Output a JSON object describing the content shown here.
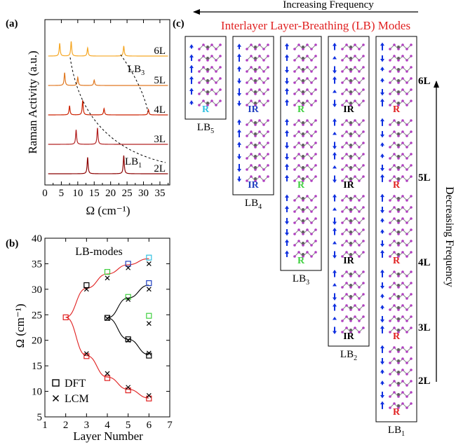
{
  "panel_labels": {
    "a": "(a)",
    "b": "(b)",
    "c": "(c)"
  },
  "chart_data": [
    {
      "type": "line",
      "panel": "(a)",
      "xlabel": "Ω (cm⁻¹)",
      "ylabel": "Raman Activity (a.u.)",
      "xlim": [
        0,
        38
      ],
      "xticks": [
        0,
        5,
        10,
        15,
        20,
        25,
        30,
        35
      ],
      "series": [
        {
          "name": "2L",
          "color": "#8b0000",
          "peaks": [
            [
              13,
              0.9
            ],
            [
              24,
              1.0
            ]
          ]
        },
        {
          "name": "3L",
          "color": "#b22222",
          "peaks": [
            [
              9.5,
              0.8
            ],
            [
              16,
              0.9
            ]
          ]
        },
        {
          "name": "4L",
          "color": "#cc2200",
          "peaks": [
            [
              7.5,
              0.5
            ],
            [
              11.5,
              0.8
            ],
            [
              18,
              0.35
            ],
            [
              31.5,
              0.3
            ]
          ]
        },
        {
          "name": "5L",
          "color": "#e07820",
          "peaks": [
            [
              6,
              0.7
            ],
            [
              10,
              0.45
            ],
            [
              15,
              0.3
            ]
          ]
        },
        {
          "name": "6L",
          "color": "#f5a623",
          "peaks": [
            [
              4.5,
              0.7
            ],
            [
              8,
              0.8
            ],
            [
              13,
              0.45
            ],
            [
              24,
              0.55
            ]
          ]
        }
      ],
      "annotations": [
        "LB₁",
        "LB₃"
      ],
      "grid": false
    },
    {
      "type": "scatter",
      "panel": "(b)",
      "title": "LB-modes",
      "xlabel": "Layer Number",
      "ylabel": "Ω (cm⁻¹)",
      "xlim": [
        1,
        7
      ],
      "ylim": [
        5,
        40
      ],
      "xticks": [
        1,
        2,
        3,
        4,
        5,
        6,
        7
      ],
      "yticks": [
        5,
        10,
        15,
        20,
        25,
        30,
        35,
        40
      ],
      "legend": [
        {
          "marker": "square",
          "label": "DFT"
        },
        {
          "marker": "x",
          "label": "LCM"
        }
      ],
      "legend_position": "bottom-left",
      "dft": [
        {
          "x": 2,
          "y": 24.5,
          "color": "#e02020"
        },
        {
          "x": 3,
          "y": 30.8,
          "color": "#000000"
        },
        {
          "x": 3,
          "y": 16.9,
          "color": "#e02020"
        },
        {
          "x": 4,
          "y": 33.4,
          "color": "#40d040"
        },
        {
          "x": 4,
          "y": 24.4,
          "color": "#000000"
        },
        {
          "x": 4,
          "y": 12.6,
          "color": "#e02020"
        },
        {
          "x": 5,
          "y": 35.0,
          "color": "#2040c0"
        },
        {
          "x": 5,
          "y": 28.5,
          "color": "#40d040"
        },
        {
          "x": 5,
          "y": 20.2,
          "color": "#000000"
        },
        {
          "x": 5,
          "y": 10.2,
          "color": "#e02020"
        },
        {
          "x": 6,
          "y": 36.2,
          "color": "#30c0e0"
        },
        {
          "x": 6,
          "y": 31.2,
          "color": "#2040c0"
        },
        {
          "x": 6,
          "y": 24.8,
          "color": "#40d040"
        },
        {
          "x": 6,
          "y": 17.0,
          "color": "#000000"
        },
        {
          "x": 6,
          "y": 8.6,
          "color": "#e02020"
        }
      ],
      "lcm": [
        {
          "x": 3,
          "y": 30.0
        },
        {
          "x": 3,
          "y": 17.4
        },
        {
          "x": 4,
          "y": 32.2
        },
        {
          "x": 4,
          "y": 24.3
        },
        {
          "x": 4,
          "y": 13.5
        },
        {
          "x": 5,
          "y": 34.2
        },
        {
          "x": 5,
          "y": 28.0
        },
        {
          "x": 5,
          "y": 20.0
        },
        {
          "x": 5,
          "y": 10.8
        },
        {
          "x": 6,
          "y": 35.0
        },
        {
          "x": 6,
          "y": 30.0
        },
        {
          "x": 6,
          "y": 23.3
        },
        {
          "x": 6,
          "y": 17.5
        },
        {
          "x": 6,
          "y": 9.2
        }
      ],
      "fits": [
        {
          "color": "#e02020",
          "points": [
            [
              2,
              24.5
            ],
            [
              3,
              30.2
            ],
            [
              4,
              33.0
            ],
            [
              5,
              34.8
            ],
            [
              6,
              36.0
            ]
          ]
        },
        {
          "color": "#e02020",
          "points": [
            [
              2,
              24.5
            ],
            [
              3,
              17.0
            ],
            [
              4,
              12.8
            ],
            [
              5,
              10.4
            ],
            [
              6,
              8.7
            ]
          ]
        },
        {
          "color": "#000000",
          "points": [
            [
              4,
              24.4
            ],
            [
              5,
              28.3
            ],
            [
              6,
              30.8
            ]
          ]
        },
        {
          "color": "#000000",
          "points": [
            [
              4,
              24.4
            ],
            [
              5,
              20.2
            ],
            [
              6,
              17.2
            ]
          ]
        }
      ]
    }
  ],
  "panel_c": {
    "title": "Interlayer Layer-Breathing (LB) Modes",
    "top_arrow_label": "Increasing Frequency",
    "right_arrow_label": "Decreasing Frequency",
    "layer_labels": [
      "6L",
      "5L",
      "4L",
      "3L",
      "2L"
    ],
    "modes": [
      {
        "name": "LB5",
        "label_main": "LB",
        "label_sub": "5",
        "activity": [
          "R"
        ],
        "activity_color": "#30c0e0"
      },
      {
        "name": "LB4",
        "label_main": "LB",
        "label_sub": "4",
        "activity": [
          "IR",
          "IR"
        ],
        "activity_color": "#2040c0"
      },
      {
        "name": "LB3",
        "label_main": "LB",
        "label_sub": "3",
        "activity": [
          "R",
          "R",
          "R"
        ],
        "activity_color": "#40d040"
      },
      {
        "name": "LB2",
        "label_main": "LB",
        "label_sub": "2",
        "activity": [
          "IR",
          "IR",
          "IR",
          "IR"
        ],
        "activity_color": "#000000"
      },
      {
        "name": "LB1",
        "label_main": "LB",
        "label_sub": "1",
        "activity": [
          "R",
          "R",
          "R",
          "R",
          "R"
        ],
        "activity_color": "#e02020"
      }
    ]
  }
}
